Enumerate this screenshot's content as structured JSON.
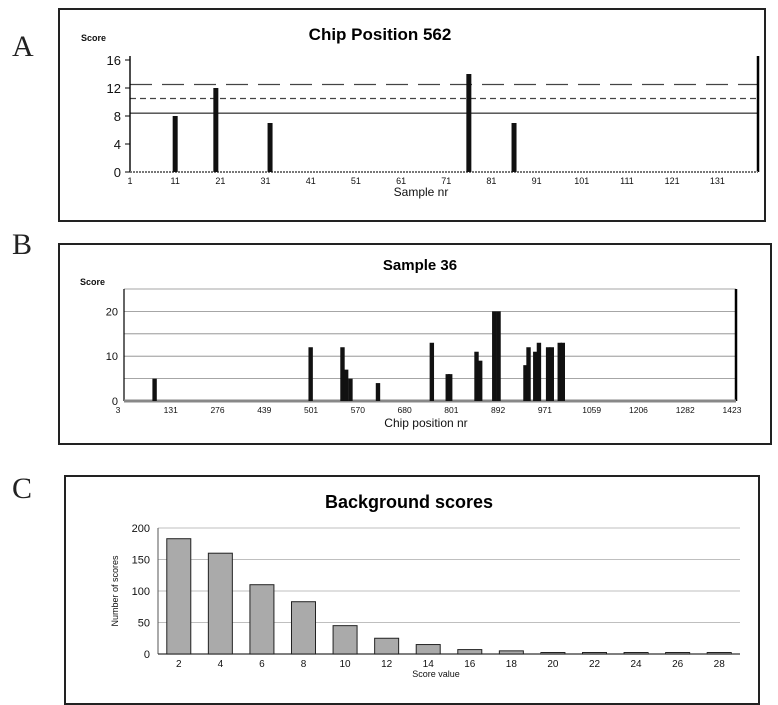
{
  "panels": [
    {
      "letter": "A"
    },
    {
      "letter": "B"
    },
    {
      "letter": "C"
    }
  ],
  "chart_data": [
    {
      "type": "bar",
      "title": "Chip Position 562",
      "xlabel": "Sample nr",
      "ylabel": "Score",
      "xlim": [
        1,
        140
      ],
      "ylim": [
        0,
        16
      ],
      "yticks": [
        0,
        4,
        8,
        12,
        16
      ],
      "xticks": [
        1,
        11,
        21,
        31,
        41,
        51,
        61,
        71,
        81,
        91,
        101,
        111,
        121,
        131
      ],
      "x_tick_labels": [
        "1",
        "11",
        "21",
        "31",
        "41",
        "51",
        "61",
        "71",
        "81",
        "91",
        "101",
        "111",
        "121",
        "131"
      ],
      "bars": [
        {
          "x": 11,
          "value": 8
        },
        {
          "x": 20,
          "value": 12
        },
        {
          "x": 32,
          "value": 7
        },
        {
          "x": 76,
          "value": 14
        },
        {
          "x": 86,
          "value": 7
        }
      ],
      "threshold_lines": [
        {
          "value": 12.5,
          "style": "long-dash"
        },
        {
          "value": 10.5,
          "style": "short-dash"
        },
        {
          "value": 8.4,
          "style": "solid"
        }
      ],
      "grid": false
    },
    {
      "type": "bar",
      "title": "Sample 36",
      "xlabel": "Chip position nr",
      "ylabel": "Score",
      "xlim": [
        0,
        1000
      ],
      "ylim": [
        0,
        25
      ],
      "yticks": [
        0,
        10,
        20
      ],
      "gridlines": [
        0,
        5,
        10,
        15,
        20,
        25
      ],
      "x_tick_labels": [
        "3",
        "131",
        "276",
        "439",
        "501",
        "570",
        "680",
        "801",
        "892",
        "971",
        "1059",
        "1206",
        "1282",
        "1423"
      ],
      "bars": [
        {
          "x": 50,
          "value": 5
        },
        {
          "x": 305,
          "value": 12
        },
        {
          "x": 357,
          "value": 12
        },
        {
          "x": 363,
          "value": 7
        },
        {
          "x": 370,
          "value": 5
        },
        {
          "x": 415,
          "value": 4
        },
        {
          "x": 503,
          "value": 13
        },
        {
          "x": 529,
          "value": 6
        },
        {
          "x": 533,
          "value": 6
        },
        {
          "x": 576,
          "value": 11
        },
        {
          "x": 582,
          "value": 9
        },
        {
          "x": 605,
          "value": 20
        },
        {
          "x": 612,
          "value": 20
        },
        {
          "x": 656,
          "value": 8
        },
        {
          "x": 661,
          "value": 12
        },
        {
          "x": 672,
          "value": 11
        },
        {
          "x": 678,
          "value": 13
        },
        {
          "x": 693,
          "value": 12
        },
        {
          "x": 699,
          "value": 12
        },
        {
          "x": 712,
          "value": 13
        },
        {
          "x": 717,
          "value": 13
        }
      ],
      "grid": true
    },
    {
      "type": "bar",
      "title": "Background scores",
      "xlabel": "Score value",
      "ylabel": "Number of scores",
      "ylim": [
        0,
        200
      ],
      "yticks": [
        0,
        50,
        100,
        150,
        200
      ],
      "categories": [
        "2",
        "4",
        "6",
        "8",
        "10",
        "12",
        "14",
        "16",
        "18",
        "20",
        "22",
        "24",
        "26",
        "28"
      ],
      "values": [
        183,
        160,
        110,
        83,
        45,
        25,
        15,
        7,
        5,
        1,
        1,
        2,
        2,
        1
      ],
      "bar_color": "#aaaaaa",
      "grid": true
    }
  ]
}
